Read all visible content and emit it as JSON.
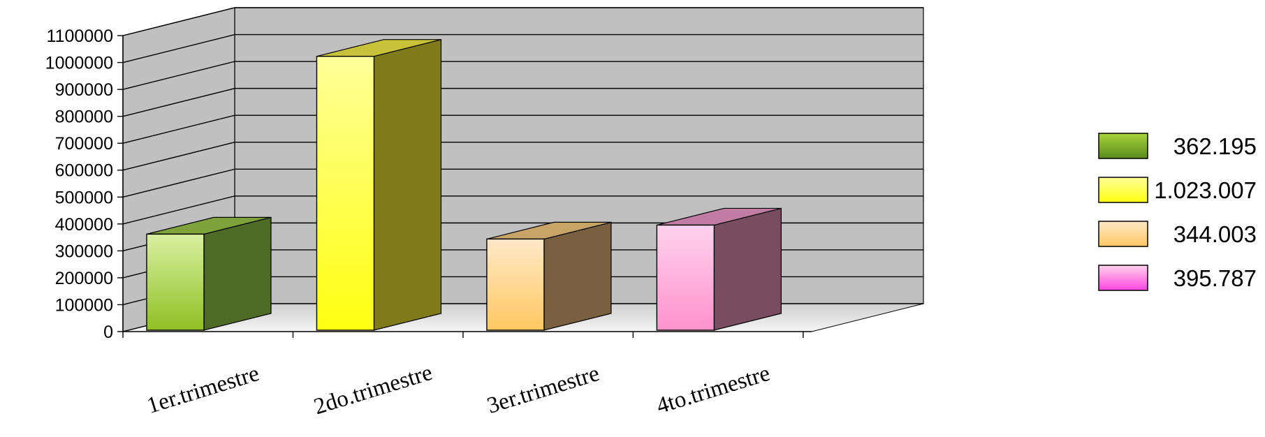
{
  "chart_data": {
    "type": "bar",
    "categories": [
      "1er.trimestre",
      "2do.trimestre",
      "3er.trimestre",
      "4to.trimestre"
    ],
    "values": [
      362195,
      1023007,
      344003,
      395787
    ],
    "ylim": [
      0,
      1100000
    ],
    "yticks": [
      0,
      100000,
      200000,
      300000,
      400000,
      500000,
      600000,
      700000,
      800000,
      900000,
      1000000,
      1100000
    ],
    "ytick_labels": [
      "0",
      "100000",
      "200000",
      "300000",
      "400000",
      "500000",
      "600000",
      "700000",
      "800000",
      "900000",
      "1000000",
      "1100000"
    ],
    "legend": {
      "position": "right",
      "entries": [
        {
          "label": "362.195",
          "color": "#8fbf2a"
        },
        {
          "label": "1.023.007",
          "color": "#ffff33"
        },
        {
          "label": "344.003",
          "color": "#ffc95a"
        },
        {
          "label": "395.787",
          "color": "#ff66dd"
        }
      ]
    },
    "grid": true,
    "style": "3d-bar",
    "colors": {
      "wall": "#c0c0c0",
      "floor": "#e4e4e4",
      "bars": [
        {
          "top": "#d9f0a0",
          "bottom": "#8fc024",
          "side": "#4e6b26",
          "cap": "#7ea33a"
        },
        {
          "top": "#ffff99",
          "bottom": "#ffff10",
          "side": "#7f7a1a",
          "cap": "#c8c23a"
        },
        {
          "top": "#ffe8c8",
          "bottom": "#ffc860",
          "side": "#7a6040",
          "cap": "#c8a468"
        },
        {
          "top": "#ffd2ee",
          "bottom": "#ff92cc",
          "side": "#7a4c60",
          "cap": "#c07ca2"
        }
      ]
    }
  }
}
